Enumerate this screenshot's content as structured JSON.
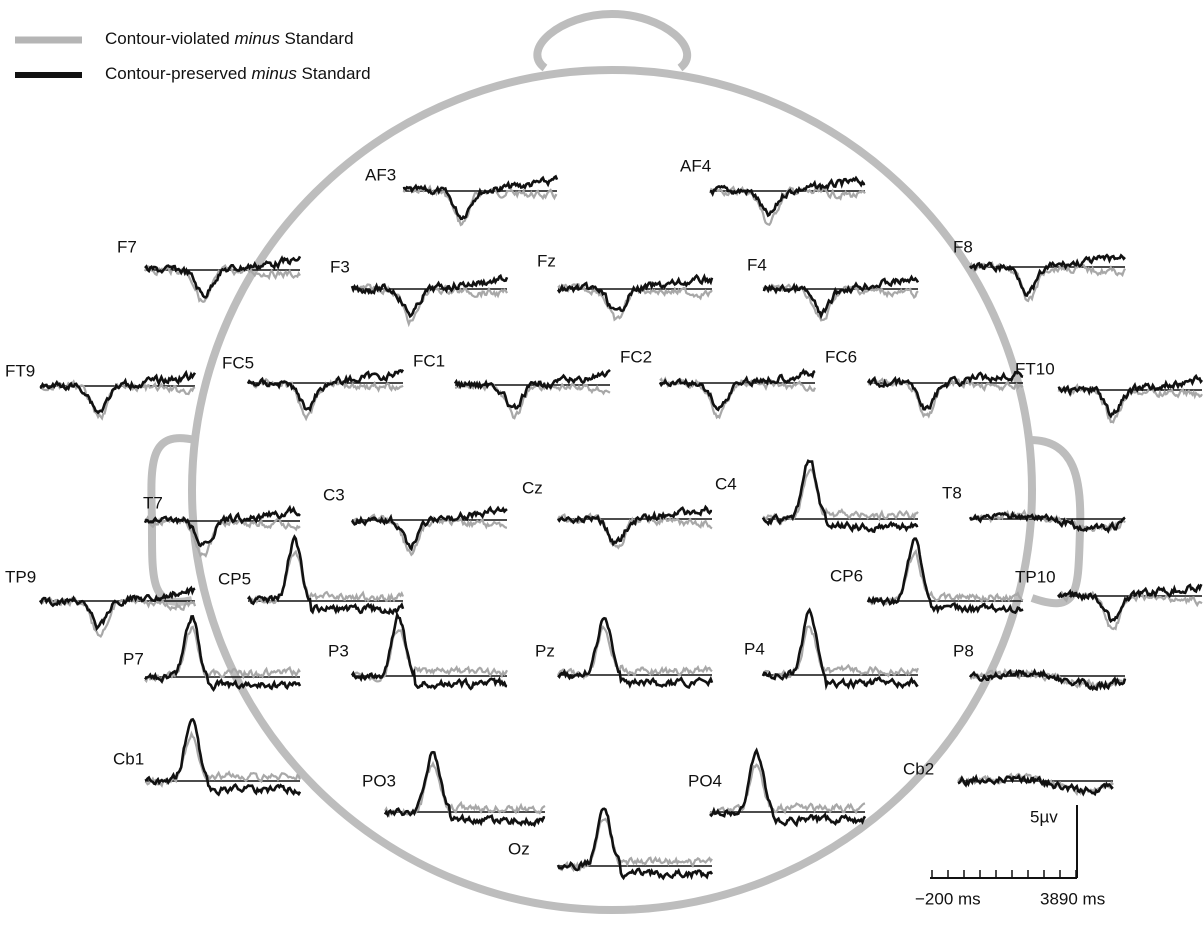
{
  "legend": [
    {
      "pre": "Contour-violated ",
      "em": "minus",
      "post": " Standard"
    },
    {
      "pre": "Contour-preserved ",
      "em": "minus",
      "post": " Standard"
    }
  ],
  "electrodes": [
    "AF3",
    "AF4",
    "F7",
    "F3",
    "Fz",
    "F4",
    "F8",
    "FT9",
    "FC5",
    "FC1",
    "FC2",
    "FC6",
    "FT10",
    "T7",
    "C3",
    "Cz",
    "C4",
    "T8",
    "TP9",
    "CP5",
    "CP6",
    "TP10",
    "P7",
    "P3",
    "Pz",
    "P4",
    "P8",
    "Cb1",
    "PO3",
    "PO4",
    "Oz",
    "Cb2"
  ],
  "scale": {
    "amplitude": "5µv",
    "start": "−200 ms",
    "end": "3890 ms"
  }
}
